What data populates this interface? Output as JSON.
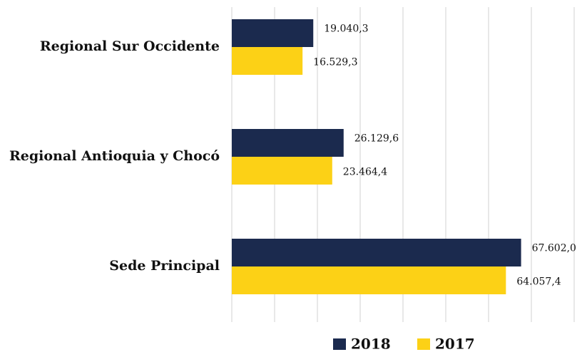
{
  "chart_data": {
    "type": "bar",
    "orientation": "horizontal",
    "categories": [
      "Regional Sur Occidente",
      "Regional Antioquia y Chocó",
      "Sede Principal"
    ],
    "series": [
      {
        "name": "2018",
        "color": "#1b2a4e",
        "values": [
          19040.3,
          26129.6,
          67602.0
        ],
        "value_labels": [
          "19.040,3",
          "26.129,6",
          "67.602,0"
        ]
      },
      {
        "name": "2017",
        "color": "#fcd116",
        "values": [
          16529.3,
          23464.4,
          64057.4
        ],
        "value_labels": [
          "16.529,3",
          "23.464,4",
          "64.057,4"
        ]
      }
    ],
    "xlim": [
      0,
      80000
    ],
    "xticks": [
      0,
      10000,
      20000,
      30000,
      40000,
      50000,
      60000,
      70000,
      80000
    ],
    "grid": true,
    "legend": "bottom"
  }
}
